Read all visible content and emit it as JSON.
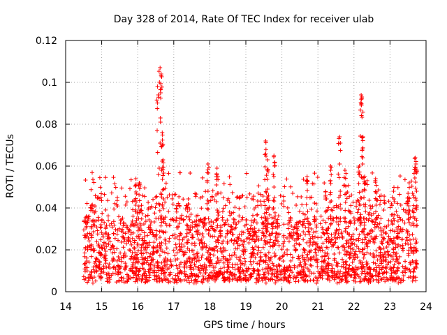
{
  "chart_data": {
    "type": "scatter",
    "title": "Day 328 of 2014, Rate Of TEC Index for receiver ulab",
    "xlabel": "GPS time / hours",
    "ylabel": "ROTI / TECUs",
    "xlim": [
      14,
      24
    ],
    "ylim": [
      0,
      0.12
    ],
    "x_ticks": [
      "14",
      "15",
      "16",
      "17",
      "18",
      "19",
      "20",
      "21",
      "22",
      "23",
      "24"
    ],
    "y_ticks": [
      "0",
      "0.02",
      "0.04",
      "0.06",
      "0.08",
      "0.1",
      "0.12"
    ],
    "grid": true,
    "marker": "+",
    "marker_color": "#ff0000",
    "x_range_of_data": [
      14.5,
      23.75
    ],
    "typical_range": [
      0.005,
      0.035
    ],
    "peaks": [
      {
        "x": 15.95,
        "y": 0.054
      },
      {
        "x": 16.05,
        "y": 0.052
      },
      {
        "x": 16.55,
        "y": 0.098
      },
      {
        "x": 16.62,
        "y": 0.107
      },
      {
        "x": 16.65,
        "y": 0.104
      },
      {
        "x": 16.68,
        "y": 0.076
      },
      {
        "x": 16.7,
        "y": 0.063
      },
      {
        "x": 17.95,
        "y": 0.061
      },
      {
        "x": 18.2,
        "y": 0.059
      },
      {
        "x": 19.55,
        "y": 0.072
      },
      {
        "x": 19.6,
        "y": 0.063
      },
      {
        "x": 19.78,
        "y": 0.065
      },
      {
        "x": 20.7,
        "y": 0.055
      },
      {
        "x": 21.35,
        "y": 0.06
      },
      {
        "x": 21.6,
        "y": 0.074
      },
      {
        "x": 21.75,
        "y": 0.058
      },
      {
        "x": 22.15,
        "y": 0.06
      },
      {
        "x": 22.2,
        "y": 0.094
      },
      {
        "x": 22.22,
        "y": 0.093
      },
      {
        "x": 22.25,
        "y": 0.074
      },
      {
        "x": 22.3,
        "y": 0.055
      },
      {
        "x": 22.6,
        "y": 0.054
      },
      {
        "x": 23.5,
        "y": 0.047
      },
      {
        "x": 23.7,
        "y": 0.064
      },
      {
        "x": 23.72,
        "y": 0.061
      }
    ]
  }
}
